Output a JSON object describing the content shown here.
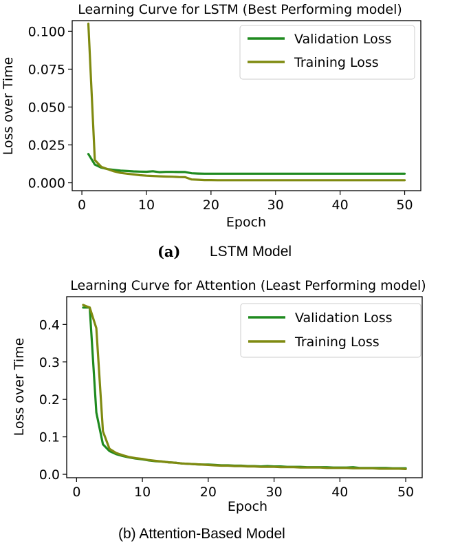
{
  "captions": {
    "a_label": "(a)",
    "a_text": "LSTM Model",
    "b_text": "(b) Attention-Based Model"
  },
  "colors": {
    "validation": "#1f8a1f",
    "training": "#7f8a10",
    "axis": "#000000"
  },
  "chart_data": [
    {
      "type": "line",
      "title": "Learning Curve for LSTM (Best Performing model)",
      "xlabel": "Epoch",
      "ylabel": "Loss over Time",
      "xlim": [
        -1.5,
        52.5
      ],
      "ylim": [
        -0.0052,
        0.107
      ],
      "xticks": [
        0,
        10,
        20,
        30,
        40,
        50
      ],
      "yticks": [
        0.0,
        0.025,
        0.05,
        0.075,
        0.1
      ],
      "ytick_labels": [
        "0.000",
        "0.025",
        "0.050",
        "0.075",
        "0.100"
      ],
      "legend_position": "upper right",
      "series": [
        {
          "name": "Validation Loss",
          "color": "#1f8a1f",
          "x": [
            1,
            2,
            3,
            4,
            5,
            6,
            7,
            8,
            9,
            10,
            11,
            12,
            13,
            14,
            15,
            16,
            17,
            18,
            19,
            20,
            21,
            22,
            23,
            24,
            25,
            26,
            27,
            28,
            29,
            30,
            31,
            32,
            33,
            34,
            35,
            36,
            37,
            38,
            39,
            40,
            41,
            42,
            43,
            44,
            45,
            46,
            47,
            48,
            49,
            50
          ],
          "y": [
            0.019,
            0.012,
            0.01,
            0.009,
            0.0085,
            0.008,
            0.0078,
            0.0075,
            0.0074,
            0.0073,
            0.0076,
            0.007,
            0.0072,
            0.0072,
            0.0071,
            0.0071,
            0.0063,
            0.0061,
            0.006,
            0.006,
            0.006,
            0.006,
            0.006,
            0.006,
            0.006,
            0.006,
            0.006,
            0.006,
            0.006,
            0.006,
            0.006,
            0.006,
            0.006,
            0.006,
            0.006,
            0.006,
            0.006,
            0.006,
            0.006,
            0.006,
            0.006,
            0.006,
            0.006,
            0.006,
            0.006,
            0.006,
            0.006,
            0.006,
            0.006,
            0.006
          ]
        },
        {
          "name": "Training Loss",
          "color": "#7f8a10",
          "x": [
            1,
            2,
            3,
            4,
            5,
            6,
            7,
            8,
            9,
            10,
            11,
            12,
            13,
            14,
            15,
            16,
            17,
            18,
            19,
            20,
            21,
            22,
            23,
            24,
            25,
            26,
            27,
            28,
            29,
            30,
            31,
            32,
            33,
            34,
            35,
            36,
            37,
            38,
            39,
            40,
            41,
            42,
            43,
            44,
            45,
            46,
            47,
            48,
            49,
            50
          ],
          "y": [
            0.105,
            0.015,
            0.0105,
            0.009,
            0.0075,
            0.0065,
            0.006,
            0.0055,
            0.005,
            0.0047,
            0.0045,
            0.0043,
            0.0041,
            0.004,
            0.0038,
            0.0037,
            0.0022,
            0.002,
            0.0018,
            0.0018,
            0.0017,
            0.0017,
            0.0017,
            0.0017,
            0.0017,
            0.0017,
            0.0017,
            0.0017,
            0.0017,
            0.0017,
            0.0017,
            0.0017,
            0.0017,
            0.0017,
            0.0017,
            0.0017,
            0.0017,
            0.0017,
            0.0017,
            0.0017,
            0.0017,
            0.0017,
            0.0017,
            0.0017,
            0.0017,
            0.0017,
            0.0017,
            0.0017,
            0.0017,
            0.0017
          ]
        }
      ]
    },
    {
      "type": "line",
      "title": "Learning Curve for Attention (Least Performing model)",
      "xlabel": "Epoch",
      "ylabel": "Loss over Time",
      "xlim": [
        -1.5,
        52.5
      ],
      "ylim": [
        -0.0091,
        0.4741
      ],
      "xticks": [
        0,
        10,
        20,
        30,
        40,
        50
      ],
      "yticks": [
        0.0,
        0.1,
        0.2,
        0.3,
        0.4
      ],
      "ytick_labels": [
        "0.0",
        "0.1",
        "0.2",
        "0.3",
        "0.4"
      ],
      "legend_position": "upper right",
      "series": [
        {
          "name": "Validation Loss",
          "color": "#1f8a1f",
          "x": [
            1,
            2,
            3,
            4,
            5,
            6,
            7,
            8,
            9,
            10,
            11,
            12,
            13,
            14,
            15,
            16,
            17,
            18,
            19,
            20,
            21,
            22,
            23,
            24,
            25,
            26,
            27,
            28,
            29,
            30,
            31,
            32,
            33,
            34,
            35,
            36,
            37,
            38,
            39,
            40,
            41,
            42,
            43,
            44,
            45,
            46,
            47,
            48,
            49,
            50
          ],
          "y": [
            0.445,
            0.445,
            0.165,
            0.08,
            0.062,
            0.054,
            0.049,
            0.045,
            0.042,
            0.04,
            0.037,
            0.035,
            0.034,
            0.032,
            0.031,
            0.029,
            0.028,
            0.027,
            0.026,
            0.026,
            0.025,
            0.024,
            0.024,
            0.023,
            0.023,
            0.022,
            0.022,
            0.021,
            0.022,
            0.021,
            0.021,
            0.02,
            0.02,
            0.02,
            0.019,
            0.019,
            0.019,
            0.019,
            0.018,
            0.018,
            0.018,
            0.019,
            0.017,
            0.017,
            0.017,
            0.017,
            0.017,
            0.016,
            0.016,
            0.016
          ]
        },
        {
          "name": "Training Loss",
          "color": "#7f8a10",
          "x": [
            1,
            2,
            3,
            4,
            5,
            6,
            7,
            8,
            9,
            10,
            11,
            12,
            13,
            14,
            15,
            16,
            17,
            18,
            19,
            20,
            21,
            22,
            23,
            24,
            25,
            26,
            27,
            28,
            29,
            30,
            31,
            32,
            33,
            34,
            35,
            36,
            37,
            38,
            39,
            40,
            41,
            42,
            43,
            44,
            45,
            46,
            47,
            48,
            49,
            50
          ],
          "y": [
            0.452,
            0.445,
            0.39,
            0.115,
            0.068,
            0.057,
            0.051,
            0.046,
            0.043,
            0.041,
            0.038,
            0.036,
            0.034,
            0.032,
            0.031,
            0.029,
            0.028,
            0.027,
            0.026,
            0.025,
            0.024,
            0.023,
            0.023,
            0.022,
            0.022,
            0.021,
            0.021,
            0.02,
            0.02,
            0.02,
            0.019,
            0.019,
            0.019,
            0.018,
            0.018,
            0.018,
            0.018,
            0.017,
            0.017,
            0.017,
            0.017,
            0.016,
            0.016,
            0.016,
            0.016,
            0.015,
            0.015,
            0.015,
            0.015,
            0.014
          ]
        }
      ]
    }
  ]
}
